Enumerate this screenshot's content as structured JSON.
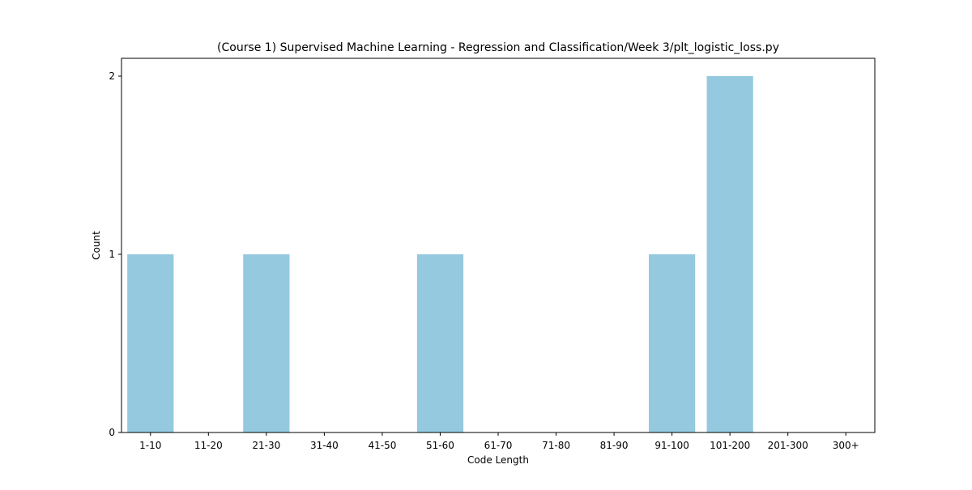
{
  "chart_data": {
    "type": "bar",
    "title": "(Course 1) Supervised Machine Learning - Regression and Classification/Week 3/plt_logistic_loss.py",
    "xlabel": "Code Length",
    "ylabel": "Count",
    "categories": [
      "1-10",
      "11-20",
      "21-30",
      "31-40",
      "41-50",
      "51-60",
      "61-70",
      "71-80",
      "81-90",
      "91-100",
      "101-200",
      "201-300",
      "300+"
    ],
    "values": [
      1,
      0,
      1,
      0,
      0,
      1,
      0,
      0,
      0,
      1,
      2,
      0,
      0
    ],
    "yticks": [
      "0",
      "1",
      "2"
    ],
    "ylim": [
      0,
      2.1
    ],
    "grid": false,
    "legend": "none",
    "bar_color": "#94c9df",
    "axis_color": "#000000"
  }
}
